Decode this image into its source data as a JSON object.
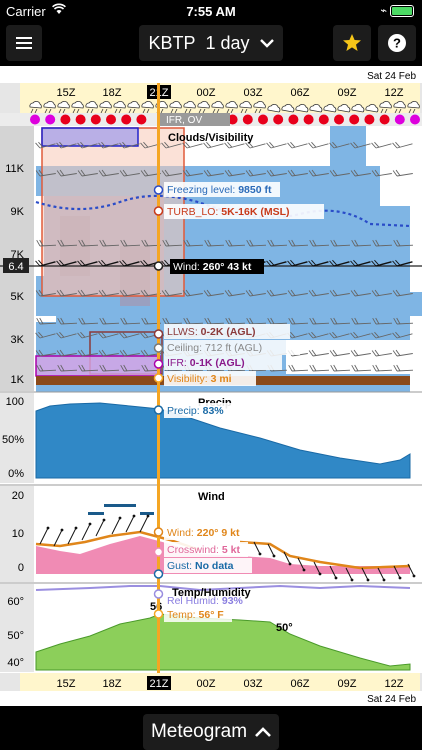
{
  "status_bar": {
    "carrier": "Carrier",
    "time": "7:55 AM"
  },
  "toolbar": {
    "station": "KBTP",
    "period": "1 day"
  },
  "timeline": {
    "date": "Sat 24 Feb",
    "hours": [
      "15Z",
      "18Z",
      "21Z",
      "00Z",
      "03Z",
      "06Z",
      "09Z",
      "12Z"
    ],
    "current_hour": "21Z",
    "flight_category": "IFR, OV"
  },
  "clouds_panel": {
    "title": "Clouds/Visibility",
    "altitude_labels": [
      "11K",
      "9K",
      "7K",
      "5K",
      "3K",
      "1K"
    ],
    "current_altitude": "6.4",
    "freezing_level_label": "Freezing level: ",
    "freezing_level_value": "9850 ft",
    "turb_label": "TURB_LO: ",
    "turb_value": "5K-16K (MSL)",
    "wind_label": "Wind: ",
    "wind_value": "260° 43 kt",
    "llws_label": "LLWS: ",
    "llws_value": "0-2K (AGL)",
    "ceiling_label": "Ceiling: ",
    "ceiling_value": "712 ft (AGL)",
    "ifr_label": "IFR: ",
    "ifr_value": "0-1K (AGL)",
    "visibility_label": "Visibility: ",
    "visibility_value": "3 mi"
  },
  "precip_panel": {
    "title": "Precip",
    "y_labels": [
      "100",
      "50%",
      "0%"
    ],
    "value_label": "Precip: ",
    "value": "83%"
  },
  "wind_panel": {
    "title": "Wind",
    "y_labels": [
      "20",
      "10",
      "0"
    ],
    "wind_label": "Wind: ",
    "wind_value": "220° 9 kt",
    "crosswind_label": "Crosswind: ",
    "crosswind_value": "5 kt",
    "gust_label": "Gust: ",
    "gust_value": "No data"
  },
  "temp_panel": {
    "title": "Temp/Humidity",
    "y_labels": [
      "60°",
      "50°",
      "40°"
    ],
    "humid_label": "Rel Humid: ",
    "humid_value": "93%",
    "temp_label": "Temp: ",
    "temp_value": "56° F",
    "peak_value": "56",
    "later_value": "50°"
  },
  "bottom_bar": {
    "label": "Meteogram"
  },
  "colors": {
    "accent_orange": "#f5a623",
    "ifr_red": "#e8001c",
    "ifr_magenta": "#cc00cc",
    "precip_blue": "#2f87c8",
    "wind_orange": "#e0861a",
    "crosswind_pink": "#f08bb4",
    "temp_green": "#8ccf5a",
    "humid_purple": "#a090e0"
  }
}
